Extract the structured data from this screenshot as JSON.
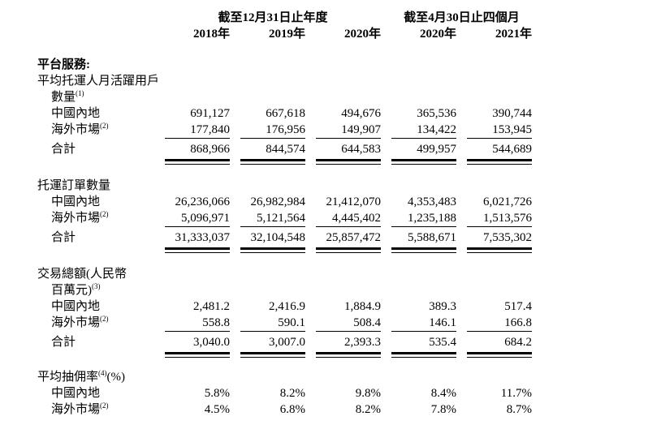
{
  "header": {
    "group1_label": "截至12月31日止年度",
    "group2_label": "截至4月30日止四個月",
    "years": [
      "2018年",
      "2019年",
      "2020年",
      "2020年",
      "2021年"
    ]
  },
  "sections": [
    {
      "title": "平台服務:",
      "sub1": "平均托運人月活躍用戶",
      "sub2": "數量",
      "sub2_note": "(1)",
      "rows": [
        {
          "label": "中國內地",
          "values": [
            "691,127",
            "667,618",
            "494,676",
            "365,536",
            "390,744"
          ]
        },
        {
          "label": "海外市場",
          "note": "(2)",
          "values": [
            "177,840",
            "176,956",
            "149,907",
            "134,422",
            "153,945"
          ]
        },
        {
          "label": "合計",
          "values": [
            "868,966",
            "844,574",
            "644,583",
            "499,957",
            "544,689"
          ]
        }
      ]
    },
    {
      "title": "托運訂單數量",
      "rows": [
        {
          "label": "中國內地",
          "values": [
            "26,236,066",
            "26,982,984",
            "21,412,070",
            "4,353,483",
            "6,021,726"
          ]
        },
        {
          "label": "海外市場",
          "note": "(2)",
          "values": [
            "5,096,971",
            "5,121,564",
            "4,445,402",
            "1,235,188",
            "1,513,576"
          ]
        },
        {
          "label": "合計",
          "values": [
            "31,333,037",
            "32,104,548",
            "25,857,472",
            "5,588,671",
            "7,535,302"
          ]
        }
      ]
    },
    {
      "title1": "交易總額(人民幣",
      "title2": "百萬元)",
      "title2_note": "(3)",
      "rows": [
        {
          "label": "中國內地",
          "values": [
            "2,481.2",
            "2,416.9",
            "1,884.9",
            "389.3",
            "517.4"
          ]
        },
        {
          "label": "海外市場",
          "note": "(2)",
          "values": [
            "558.8",
            "590.1",
            "508.4",
            "146.1",
            "166.8"
          ]
        },
        {
          "label": "合計",
          "values": [
            "3,040.0",
            "3,007.0",
            "2,393.3",
            "535.4",
            "684.2"
          ]
        }
      ]
    },
    {
      "title": "平均抽佣率",
      "title_note": "(4)",
      "title_suffix": "(%)",
      "rows": [
        {
          "label": "中國內地",
          "values": [
            "5.8%",
            "8.2%",
            "9.8%",
            "8.4%",
            "11.7%"
          ]
        },
        {
          "label": "海外市場",
          "note": "(2)",
          "values": [
            "4.5%",
            "6.8%",
            "8.2%",
            "7.8%",
            "8.7%"
          ]
        }
      ]
    }
  ]
}
